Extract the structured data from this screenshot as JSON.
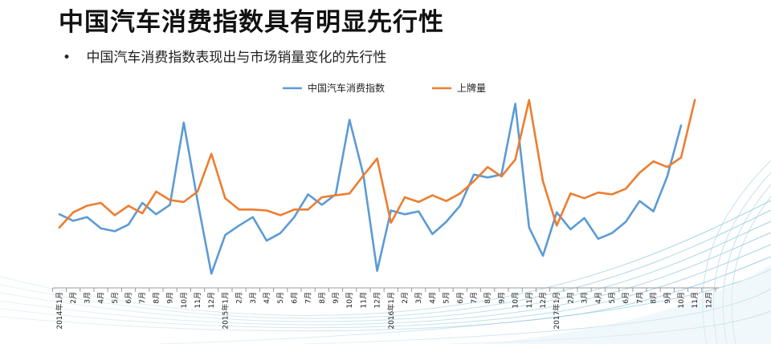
{
  "slide": {
    "title": "中国汽车消费指数具有明显先行性",
    "bullet": "中国汽车消费指数表现出与市场销量变化的先行性"
  },
  "chart_data": {
    "type": "line",
    "x": [
      "2014年1月",
      "2月",
      "3月",
      "4月",
      "5月",
      "6月",
      "7月",
      "8月",
      "9月",
      "10月",
      "11月",
      "12月",
      "2015年1月",
      "2月",
      "3月",
      "4月",
      "5月",
      "6月",
      "7月",
      "8月",
      "9月",
      "10月",
      "11月",
      "12月",
      "2016年1月",
      "2月",
      "3月",
      "4月",
      "5月",
      "6月",
      "7月",
      "8月",
      "9月",
      "10月",
      "11月",
      "12月",
      "2017年1月",
      "2月",
      "3月",
      "4月",
      "5月",
      "6月",
      "7月",
      "8月",
      "9月",
      "10月",
      "11月",
      "12月"
    ],
    "series": [
      {
        "name": "中国汽车消费指数",
        "color": "#5b9bd5",
        "values": [
          38,
          31,
          35,
          23,
          20,
          27,
          50,
          38,
          48,
          135,
          52,
          -25,
          16,
          26,
          35,
          10,
          18,
          35,
          59,
          48,
          59,
          138,
          80,
          -22,
          42,
          38,
          41,
          17,
          30,
          47,
          80,
          77,
          80,
          155,
          24,
          -6,
          40,
          22,
          34,
          12,
          18,
          30,
          52,
          41,
          78,
          132,
          null,
          null
        ]
      },
      {
        "name": "上牌量",
        "color": "#ed7d31",
        "values": [
          24,
          40,
          47,
          50,
          37,
          47,
          39,
          62,
          53,
          51,
          62,
          102,
          55,
          43,
          43,
          42,
          37,
          43,
          43,
          56,
          58,
          60,
          79,
          97,
          29,
          56,
          51,
          58,
          52,
          60,
          73,
          88,
          78,
          96,
          159,
          73,
          26,
          60,
          55,
          61,
          59,
          65,
          82,
          94,
          88,
          98,
          159,
          null
        ]
      }
    ],
    "ylim": [
      -40,
      180
    ],
    "legend": "top-center",
    "grid": false
  }
}
